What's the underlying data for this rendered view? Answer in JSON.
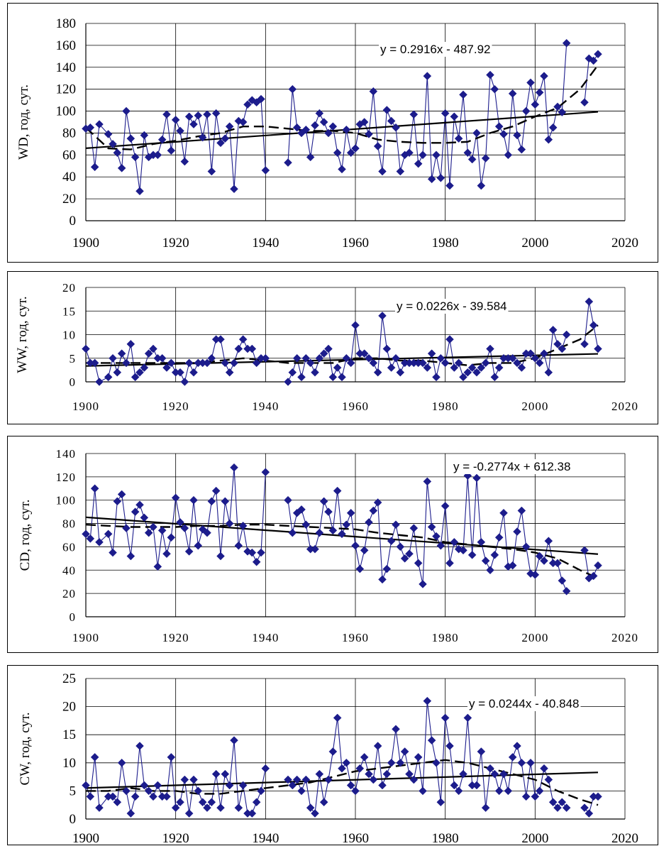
{
  "chart_data": [
    {
      "type": "line",
      "ylabel": "WD, год, сут.",
      "equation": "y = 0.2916x - 487.92",
      "xlim": [
        1900,
        2020
      ],
      "ylim": [
        0,
        180
      ],
      "xticks": [
        "1900",
        "1920",
        "1940",
        "1960",
        "1980",
        "2000",
        "2020"
      ],
      "yticks": [
        "0",
        "20",
        "40",
        "60",
        "80",
        "100",
        "120",
        "140",
        "160",
        "180"
      ],
      "trend": {
        "slope": 0.2916,
        "intercept": -487.92,
        "x": [
          1900,
          2014
        ]
      },
      "smooth": {
        "x": [
          1900,
          1905,
          1910,
          1915,
          1920,
          1925,
          1930,
          1935,
          1940,
          1945,
          1950,
          1955,
          1960,
          1965,
          1970,
          1975,
          1980,
          1985,
          1990,
          1995,
          2000,
          2005,
          2010,
          2014
        ],
        "y": [
          85,
          66,
          65,
          70,
          73,
          77,
          80,
          86,
          86,
          84,
          82,
          82,
          80,
          74,
          72,
          71,
          71,
          72,
          80,
          86,
          95,
          103,
          120,
          142
        ]
      },
      "series": {
        "x": [
          1900,
          1901,
          1902,
          1903,
          1905,
          1906,
          1907,
          1908,
          1909,
          1910,
          1911,
          1912,
          1913,
          1914,
          1915,
          1916,
          1917,
          1918,
          1919,
          1920,
          1921,
          1922,
          1923,
          1924,
          1925,
          1926,
          1927,
          1928,
          1929,
          1930,
          1931,
          1932,
          1933,
          1934,
          1935,
          1936,
          1937,
          1938,
          1939,
          1940,
          1945,
          1946,
          1947,
          1948,
          1949,
          1950,
          1951,
          1952,
          1953,
          1954,
          1955,
          1956,
          1957,
          1958,
          1959,
          1960,
          1961,
          1962,
          1963,
          1964,
          1965,
          1966,
          1967,
          1968,
          1969,
          1970,
          1971,
          1972,
          1973,
          1974,
          1975,
          1976,
          1977,
          1978,
          1979,
          1980,
          1981,
          1982,
          1983,
          1984,
          1985,
          1986,
          1987,
          1988,
          1989,
          1990,
          1991,
          1992,
          1993,
          1994,
          1995,
          1996,
          1997,
          1998,
          1999,
          2000,
          2001,
          2002,
          2003,
          2004,
          2005,
          2006,
          2007,
          2011,
          2012,
          2013,
          2014
        ],
        "y": [
          84,
          85,
          49,
          88,
          79,
          70,
          62,
          48,
          100,
          75,
          58,
          27,
          78,
          58,
          60,
          60,
          74,
          97,
          64,
          92,
          82,
          54,
          95,
          88,
          96,
          76,
          97,
          45,
          98,
          71,
          75,
          86,
          29,
          91,
          90,
          106,
          110,
          108,
          111,
          46,
          53,
          120,
          85,
          80,
          83,
          58,
          87,
          98,
          90,
          80,
          86,
          62,
          47,
          83,
          62,
          66,
          88,
          90,
          79,
          118,
          68,
          45,
          101,
          91,
          85,
          45,
          60,
          62,
          97,
          52,
          60,
          132,
          38,
          60,
          39,
          98,
          32,
          95,
          75,
          115,
          62,
          56,
          80,
          32,
          57,
          133,
          120,
          86,
          79,
          60,
          116,
          78,
          65,
          100,
          126,
          106,
          117,
          132,
          74,
          85,
          104,
          99,
          162,
          108,
          148,
          146,
          152
        ]
      }
    },
    {
      "type": "line",
      "ylabel": "WW, год, сут.",
      "equation": "y = 0.0226x - 39.584",
      "xlim": [
        1900,
        2020
      ],
      "ylim": [
        0,
        20
      ],
      "xticks": [
        "1900",
        "1920",
        "1940",
        "1960",
        "1980",
        "2000",
        "2020"
      ],
      "yticks": [
        "0",
        "5",
        "10",
        "15",
        "20"
      ],
      "trend": {
        "slope": 0.0226,
        "intercept": -39.584,
        "x": [
          1900,
          2014
        ]
      },
      "smooth": {
        "x": [
          1900,
          1905,
          1910,
          1915,
          1920,
          1925,
          1930,
          1935,
          1940,
          1945,
          1950,
          1955,
          1960,
          1965,
          1970,
          1975,
          1980,
          1985,
          1990,
          1995,
          2000,
          2005,
          2010,
          2014
        ],
        "y": [
          4,
          4,
          4,
          4,
          4,
          4,
          4.5,
          5,
          4.5,
          4,
          4,
          4,
          5,
          5,
          4.5,
          4.5,
          4,
          3.5,
          4,
          4,
          5,
          7,
          9,
          12
        ]
      },
      "series": {
        "x": [
          1900,
          1901,
          1902,
          1903,
          1905,
          1906,
          1907,
          1908,
          1909,
          1910,
          1911,
          1912,
          1913,
          1914,
          1915,
          1916,
          1917,
          1918,
          1919,
          1920,
          1921,
          1922,
          1923,
          1924,
          1925,
          1926,
          1927,
          1928,
          1929,
          1930,
          1931,
          1932,
          1933,
          1934,
          1935,
          1936,
          1937,
          1938,
          1939,
          1940,
          1945,
          1946,
          1947,
          1948,
          1949,
          1950,
          1951,
          1952,
          1953,
          1954,
          1955,
          1956,
          1957,
          1958,
          1959,
          1960,
          1961,
          1962,
          1963,
          1964,
          1965,
          1966,
          1967,
          1968,
          1969,
          1970,
          1971,
          1972,
          1973,
          1974,
          1975,
          1976,
          1977,
          1978,
          1979,
          1980,
          1981,
          1982,
          1983,
          1984,
          1985,
          1986,
          1987,
          1988,
          1989,
          1990,
          1991,
          1992,
          1993,
          1994,
          1995,
          1996,
          1997,
          1998,
          1999,
          2000,
          2001,
          2002,
          2003,
          2004,
          2005,
          2006,
          2007,
          2011,
          2012,
          2013,
          2014
        ],
        "y": [
          7,
          4,
          4,
          0,
          1,
          5,
          2,
          6,
          4,
          8,
          1,
          2,
          3,
          6,
          7,
          5,
          5,
          3,
          4,
          2,
          2,
          0,
          4,
          2,
          4,
          4,
          4,
          5,
          9,
          9,
          4,
          2,
          4,
          7,
          9,
          7,
          7,
          4,
          5,
          5,
          0,
          2,
          5,
          1,
          5,
          4,
          2,
          5,
          6,
          7,
          1,
          3,
          1,
          5,
          4,
          12,
          6,
          6,
          5,
          4,
          2,
          14,
          7,
          3,
          5,
          2,
          4,
          4,
          4,
          4,
          4,
          3,
          6,
          1,
          5,
          4,
          9,
          3,
          4,
          1,
          2,
          3,
          2,
          3,
          4,
          7,
          1,
          3,
          5,
          5,
          5,
          4,
          3,
          6,
          6,
          5,
          4,
          6,
          2,
          11,
          8,
          7,
          10,
          8,
          17,
          12,
          7
        ]
      }
    },
    {
      "type": "line",
      "ylabel": "CD, год, сут.",
      "equation": "y = -0.2774x + 612.38",
      "xlim": [
        1900,
        2020
      ],
      "ylim": [
        0,
        140
      ],
      "xticks": [
        "1900",
        "1920",
        "1940",
        "1960",
        "1980",
        "2000",
        "2020"
      ],
      "yticks": [
        "0",
        "20",
        "40",
        "60",
        "80",
        "100",
        "120",
        "140"
      ],
      "trend": {
        "slope": -0.2774,
        "intercept": 612.38,
        "x": [
          1900,
          2014
        ]
      },
      "smooth": {
        "x": [
          1900,
          1905,
          1910,
          1915,
          1920,
          1925,
          1930,
          1935,
          1940,
          1945,
          1950,
          1955,
          1960,
          1965,
          1970,
          1975,
          1980,
          1985,
          1990,
          1995,
          2000,
          2005,
          2010,
          2014
        ],
        "y": [
          79,
          78,
          77,
          77,
          77,
          78,
          78,
          79,
          79,
          78,
          77,
          76,
          75,
          72,
          70,
          68,
          64,
          62,
          60,
          58,
          55,
          50,
          40,
          33
        ]
      },
      "series": {
        "x": [
          1900,
          1901,
          1902,
          1903,
          1905,
          1906,
          1907,
          1908,
          1909,
          1910,
          1911,
          1912,
          1913,
          1914,
          1915,
          1916,
          1917,
          1918,
          1919,
          1920,
          1921,
          1922,
          1923,
          1924,
          1925,
          1926,
          1927,
          1928,
          1929,
          1930,
          1931,
          1932,
          1933,
          1934,
          1935,
          1936,
          1937,
          1938,
          1939,
          1940,
          1945,
          1946,
          1947,
          1948,
          1949,
          1950,
          1951,
          1952,
          1953,
          1954,
          1955,
          1956,
          1957,
          1958,
          1959,
          1960,
          1961,
          1962,
          1963,
          1964,
          1965,
          1966,
          1967,
          1968,
          1969,
          1970,
          1971,
          1972,
          1973,
          1974,
          1975,
          1976,
          1977,
          1978,
          1979,
          1980,
          1981,
          1982,
          1983,
          1984,
          1985,
          1986,
          1987,
          1988,
          1989,
          1990,
          1991,
          1992,
          1993,
          1994,
          1995,
          1996,
          1997,
          1998,
          1999,
          2000,
          2001,
          2002,
          2003,
          2004,
          2005,
          2006,
          2007,
          2011,
          2012,
          2013,
          2014
        ],
        "y": [
          71,
          67,
          110,
          64,
          71,
          55,
          99,
          105,
          76,
          52,
          90,
          96,
          85,
          72,
          77,
          43,
          74,
          54,
          68,
          102,
          81,
          76,
          56,
          100,
          61,
          75,
          72,
          99,
          108,
          52,
          99,
          80,
          128,
          61,
          78,
          56,
          55,
          47,
          55,
          124,
          100,
          72,
          89,
          92,
          79,
          58,
          58,
          72,
          99,
          90,
          74,
          108,
          71,
          79,
          89,
          61,
          41,
          57,
          81,
          91,
          98,
          32,
          41,
          65,
          79,
          60,
          50,
          54,
          76,
          46,
          28,
          116,
          77,
          69,
          61,
          95,
          46,
          64,
          58,
          57,
          121,
          53,
          119,
          64,
          48,
          40,
          53,
          68,
          89,
          43,
          44,
          73,
          91,
          60,
          37,
          36,
          52,
          48,
          65,
          46,
          46,
          31,
          22,
          57,
          33,
          35,
          44
        ]
      }
    },
    {
      "type": "line",
      "ylabel": "CW, год, сут.",
      "equation": "y = 0.0244x - 40.848",
      "xlim": [
        1900,
        2020
      ],
      "ylim": [
        0,
        25
      ],
      "xticks": [
        "1900",
        "1920",
        "1940",
        "1960",
        "1980",
        "2000",
        "2020"
      ],
      "yticks": [
        "0",
        "5",
        "10",
        "15",
        "20",
        "25"
      ],
      "trend": {
        "slope": 0.0244,
        "intercept": -40.848,
        "x": [
          1900,
          2014
        ]
      },
      "smooth": {
        "x": [
          1900,
          1905,
          1910,
          1915,
          1920,
          1925,
          1930,
          1935,
          1940,
          1945,
          1950,
          1955,
          1960,
          1965,
          1970,
          1975,
          1980,
          1985,
          1990,
          1995,
          2000,
          2005,
          2010,
          2014
        ],
        "y": [
          5,
          5,
          5.5,
          5,
          5,
          4.5,
          4.5,
          5,
          5.5,
          6,
          6.5,
          7.5,
          8.5,
          9,
          9.5,
          10,
          10.5,
          10,
          9,
          8,
          7,
          5,
          3.5,
          2.5
        ]
      },
      "series": {
        "x": [
          1900,
          1901,
          1902,
          1903,
          1905,
          1906,
          1907,
          1908,
          1909,
          1910,
          1911,
          1912,
          1913,
          1914,
          1915,
          1916,
          1917,
          1918,
          1919,
          1920,
          1921,
          1922,
          1923,
          1924,
          1925,
          1926,
          1927,
          1928,
          1929,
          1930,
          1931,
          1932,
          1933,
          1934,
          1935,
          1936,
          1937,
          1938,
          1939,
          1940,
          1945,
          1946,
          1947,
          1948,
          1949,
          1950,
          1951,
          1952,
          1953,
          1954,
          1955,
          1956,
          1957,
          1958,
          1959,
          1960,
          1961,
          1962,
          1963,
          1964,
          1965,
          1966,
          1967,
          1968,
          1969,
          1970,
          1971,
          1972,
          1973,
          1974,
          1975,
          1976,
          1977,
          1978,
          1979,
          1980,
          1981,
          1982,
          1983,
          1984,
          1985,
          1986,
          1987,
          1988,
          1989,
          1990,
          1991,
          1992,
          1993,
          1994,
          1995,
          1996,
          1997,
          1998,
          1999,
          2000,
          2001,
          2002,
          2003,
          2004,
          2005,
          2006,
          2007,
          2011,
          2012,
          2013,
          2014
        ],
        "y": [
          6,
          4,
          11,
          2,
          4,
          4,
          3,
          10,
          5,
          1,
          4,
          13,
          6,
          5,
          4,
          6,
          4,
          4,
          11,
          2,
          3,
          7,
          1,
          7,
          5,
          3,
          2,
          3,
          8,
          2,
          8,
          6,
          14,
          2,
          6,
          1,
          1,
          3,
          5,
          9,
          7,
          6,
          7,
          5,
          7,
          2,
          1,
          8,
          3,
          7,
          12,
          18,
          9,
          10,
          6,
          5,
          9,
          11,
          8,
          7,
          13,
          6,
          8,
          10,
          16,
          10,
          12,
          8,
          7,
          11,
          5,
          21,
          14,
          10,
          3,
          18,
          13,
          6,
          5,
          8,
          18,
          6,
          6,
          12,
          2,
          9,
          8,
          5,
          8,
          5,
          11,
          13,
          10,
          4,
          10,
          4,
          5,
          9,
          7,
          3,
          2,
          3,
          2,
          2,
          1,
          4,
          4
        ]
      }
    }
  ]
}
